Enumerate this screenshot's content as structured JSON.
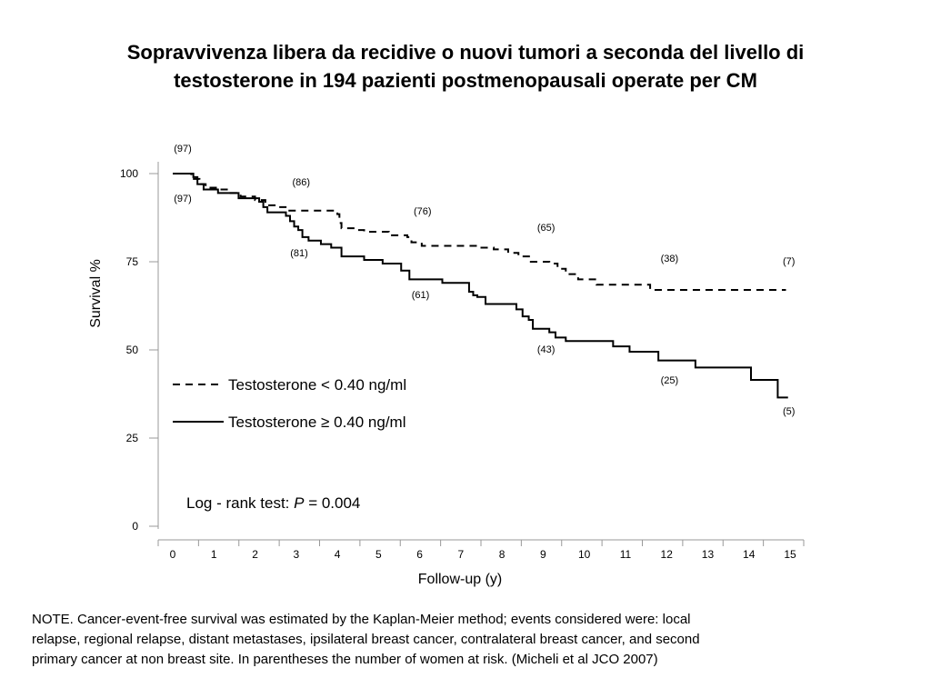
{
  "title": {
    "line1": "Sopravvivenza libera da recidive o nuovi tumori a seconda del livello di",
    "line2": "testosterone  in 194 pazienti postmenopausali operate per CM"
  },
  "chart_data": {
    "type": "line",
    "title": "Sopravvivenza libera da recidive o nuovi tumori a seconda del livello di testosterone  in 194 pazienti postmenopausali operate per CM",
    "xlabel": "Follow-up (y)",
    "ylabel": "Survival  %",
    "xlim": [
      0,
      15
    ],
    "ylim": [
      0,
      100
    ],
    "x_ticks": [
      "0",
      "1",
      "2",
      "3",
      "4",
      "5",
      "6",
      "7",
      "8",
      "9",
      "10",
      "11",
      "12",
      "13",
      "14",
      "15"
    ],
    "y_ticks": [
      "0",
      "25",
      "50",
      "75",
      "100"
    ],
    "grid": false,
    "series": [
      {
        "name": "Testosterone < 0.40 ng/ml",
        "style": "dashed",
        "color": "#000000",
        "steps": [
          [
            0,
            100
          ],
          [
            0.45,
            98.5
          ],
          [
            0.65,
            97
          ],
          [
            0.8,
            96
          ],
          [
            1.1,
            95.5
          ],
          [
            1.35,
            94.5
          ],
          [
            1.65,
            93.5
          ],
          [
            2.0,
            92.5
          ],
          [
            2.25,
            91
          ],
          [
            2.5,
            90.5
          ],
          [
            2.8,
            89.5
          ],
          [
            4.0,
            88.5
          ],
          [
            4.05,
            86
          ],
          [
            4.1,
            84.5
          ],
          [
            4.5,
            84
          ],
          [
            4.65,
            83.5
          ],
          [
            5.2,
            83.5
          ],
          [
            5.25,
            82.5
          ],
          [
            5.7,
            82
          ],
          [
            5.8,
            80.5
          ],
          [
            6.05,
            79.5
          ],
          [
            7.5,
            79
          ],
          [
            7.8,
            78.5
          ],
          [
            8.15,
            77.5
          ],
          [
            8.4,
            76.5
          ],
          [
            8.7,
            75
          ],
          [
            9.15,
            74.5
          ],
          [
            9.35,
            73
          ],
          [
            9.55,
            71.5
          ],
          [
            9.85,
            70
          ],
          [
            10.3,
            68.5
          ],
          [
            11.6,
            67
          ],
          [
            14.9,
            67
          ]
        ],
        "at_risk": [
          {
            "x": 0,
            "label": "(97)"
          },
          {
            "x": 2.9,
            "label": "(86)"
          },
          {
            "x": 5.85,
            "label": "(76)"
          },
          {
            "x": 8.85,
            "label": "(65)"
          },
          {
            "x": 11.85,
            "label": "(38)"
          },
          {
            "x": 14.75,
            "label": "(7)"
          }
        ]
      },
      {
        "name": "Testosterone ≥ 0.40 ng/ml",
        "style": "solid",
        "color": "#000000",
        "steps": [
          [
            0,
            100
          ],
          [
            0.5,
            99
          ],
          [
            0.6,
            97
          ],
          [
            0.75,
            95.5
          ],
          [
            1.05,
            95.5
          ],
          [
            1.1,
            94.5
          ],
          [
            1.6,
            93
          ],
          [
            1.65,
            93
          ],
          [
            2.1,
            92
          ],
          [
            2.2,
            90.5
          ],
          [
            2.3,
            89
          ],
          [
            2.75,
            88
          ],
          [
            2.85,
            86.5
          ],
          [
            2.95,
            85
          ],
          [
            3.05,
            84
          ],
          [
            3.15,
            82
          ],
          [
            3.3,
            81
          ],
          [
            3.6,
            80
          ],
          [
            3.85,
            79
          ],
          [
            4.05,
            79
          ],
          [
            4.1,
            76.5
          ],
          [
            4.6,
            76.5
          ],
          [
            4.65,
            75.5
          ],
          [
            5.1,
            74.5
          ],
          [
            5.55,
            72.5
          ],
          [
            5.75,
            70
          ],
          [
            6.55,
            69
          ],
          [
            7.15,
            69
          ],
          [
            7.2,
            66.5
          ],
          [
            7.3,
            65.5
          ],
          [
            7.4,
            65
          ],
          [
            7.6,
            63
          ],
          [
            8.3,
            63
          ],
          [
            8.35,
            61.5
          ],
          [
            8.5,
            59.5
          ],
          [
            8.65,
            58.5
          ],
          [
            8.75,
            56
          ],
          [
            9.15,
            55
          ],
          [
            9.3,
            53.5
          ],
          [
            9.55,
            52.5
          ],
          [
            10.7,
            51
          ],
          [
            11.1,
            49.5
          ],
          [
            11.6,
            49.5
          ],
          [
            11.8,
            47
          ],
          [
            12.5,
            47
          ],
          [
            12.7,
            45
          ],
          [
            14.0,
            45
          ],
          [
            14.05,
            41.5
          ],
          [
            14.6,
            41.5
          ],
          [
            14.7,
            36.5
          ],
          [
            14.95,
            36.5
          ]
        ],
        "at_risk": [
          {
            "x": 0,
            "label": "(97)"
          },
          {
            "x": 2.85,
            "label": "(81)"
          },
          {
            "x": 5.8,
            "label": "(61)"
          },
          {
            "x": 8.85,
            "label": "(43)"
          },
          {
            "x": 11.85,
            "label": "(25)"
          },
          {
            "x": 14.75,
            "label": "(5)"
          }
        ]
      }
    ],
    "legend": [
      {
        "label": "Testosterone < 0.40 ng/ml",
        "style": "dashed"
      },
      {
        "label": "Testosterone ≥ 0.40 ng/ml",
        "style": "solid"
      }
    ],
    "legend_position": "center-left",
    "annotation": {
      "prefix": "Log - rank test:",
      "p_symbol": "P",
      "p_value": " = 0.004"
    }
  },
  "note": {
    "line1": "NOTE. Cancer-event-free survival was estimated by the Kaplan-Meier method; events considered were: local",
    "line2": "relapse, regional relapse, distant metastases, ipsilateral breast cancer, contralateral breast cancer, and second",
    "line3": "primary cancer at non breast site. In parentheses the number of  women at risk.   (Micheli et al JCO 2007)"
  }
}
